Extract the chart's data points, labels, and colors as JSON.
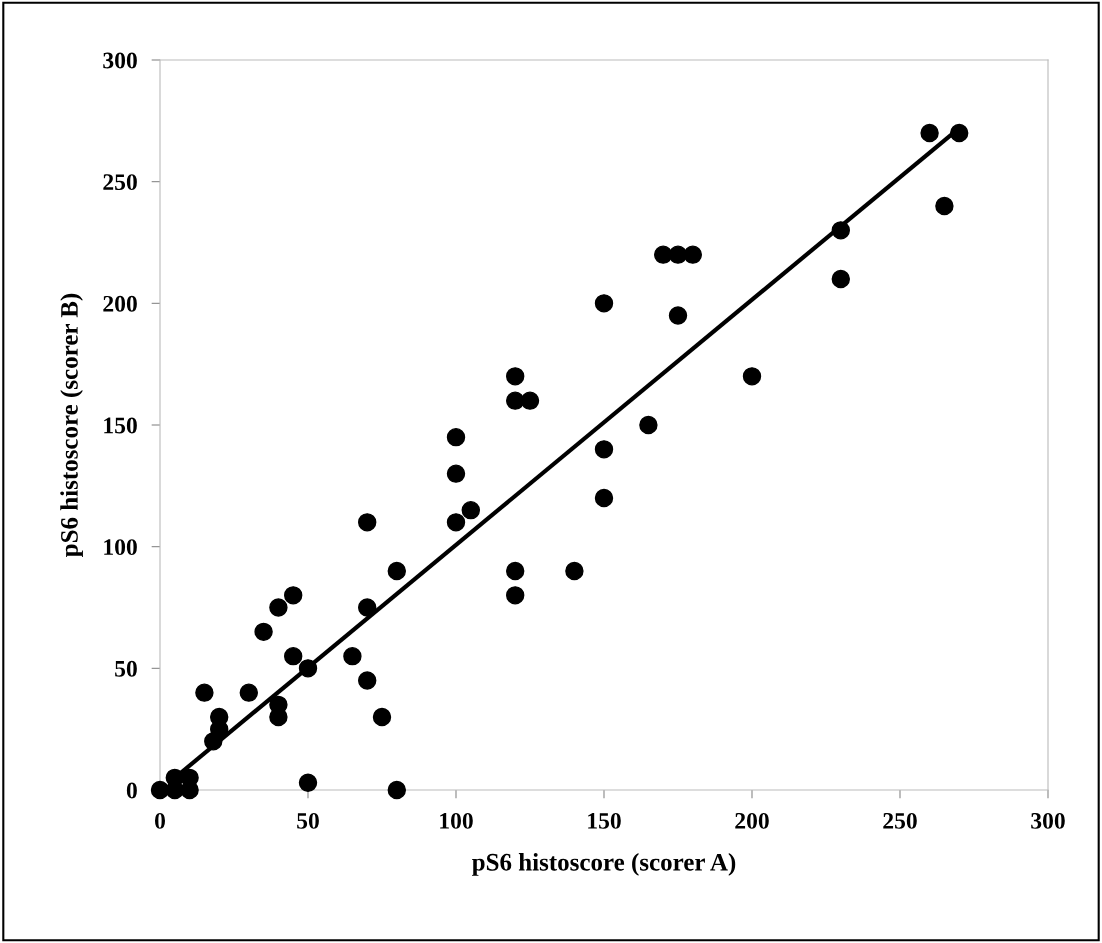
{
  "chart_data": {
    "type": "scatter",
    "xlabel": "pS6 histoscore (scorer A)",
    "ylabel": "pS6 histoscore (scorer B)",
    "xlim": [
      0,
      300
    ],
    "ylim": [
      0,
      300
    ],
    "xticks": [
      0,
      50,
      100,
      150,
      200,
      250,
      300
    ],
    "yticks": [
      0,
      50,
      100,
      150,
      200,
      250,
      300
    ],
    "grid": false,
    "legend": false,
    "series": [
      {
        "color": "#000000",
        "marker": "circle",
        "x": [
          0,
          5,
          5,
          10,
          10,
          15,
          18,
          20,
          20,
          30,
          35,
          40,
          40,
          40,
          45,
          45,
          50,
          50,
          65,
          70,
          70,
          70,
          75,
          80,
          80,
          100,
          100,
          100,
          105,
          120,
          120,
          125,
          120,
          120,
          140,
          150,
          150,
          150,
          165,
          170,
          175,
          180,
          175,
          200,
          230,
          230,
          260,
          270,
          265
        ],
        "values": [
          0,
          0,
          5,
          5,
          0,
          40,
          20,
          30,
          25,
          40,
          65,
          75,
          35,
          30,
          80,
          55,
          50,
          3,
          55,
          110,
          75,
          45,
          30,
          90,
          0,
          145,
          130,
          110,
          115,
          170,
          160,
          160,
          90,
          80,
          90,
          200,
          140,
          120,
          150,
          220,
          220,
          220,
          195,
          170,
          230,
          210,
          270,
          270,
          240
        ]
      },
      {
        "type": "line",
        "color": "#000000",
        "line_style": "solid",
        "x": [
          5,
          270
        ],
        "values": [
          5,
          272
        ]
      }
    ]
  }
}
